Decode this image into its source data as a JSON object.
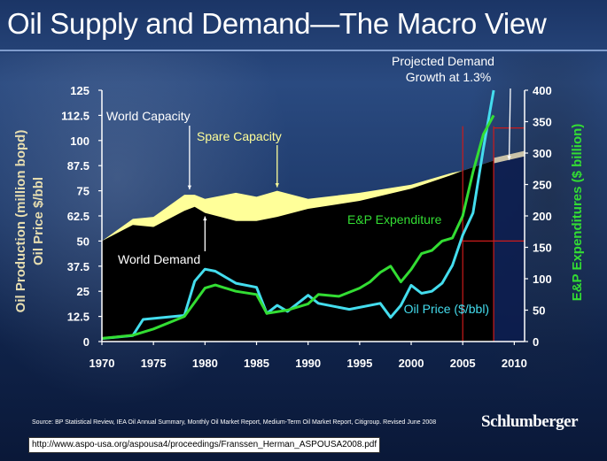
{
  "title": "Oil Supply and Demand—The Macro View",
  "source": "Source: BP Statistical Review, IEA Oil Annual Summary, Monthly Oil Market Report, Medium-Term Oil Market Report, Citigroup. Revised June 2008",
  "brand": "Schlumberger",
  "url": "http://www.aspo-usa.org/aspousa4/proceedings/Franssen_Herman_ASPOUSA2008.pdf",
  "colors": {
    "capacity": "#ffff99",
    "demand": "#000000",
    "oil_price": "#44ddee",
    "ep_expenditure": "#33dd33",
    "axis_text": "#ffffff",
    "left_axis_title": "#e6ddb0",
    "right_axis_title": "#33dd33",
    "guide_lines": "#cc1b1b",
    "demand_projection_line": "#c9c2a8"
  },
  "chart_data": {
    "type": "area",
    "left_axis_titles": [
      "Oil Production (million bopd)",
      "Oil Price $/bbl"
    ],
    "right_axis_title": "E&P Expenditures ($ billion)",
    "xlim": [
      1970,
      2011
    ],
    "ylim": [
      0,
      125
    ],
    "y2lim": [
      0,
      400
    ],
    "x_ticks": [
      1970,
      1975,
      1980,
      1985,
      1990,
      1995,
      2000,
      2005,
      2010
    ],
    "y_ticks": [
      0,
      12.5,
      25,
      37.5,
      50,
      62.5,
      75,
      87.5,
      100,
      112.5,
      125
    ],
    "y2_ticks": [
      0,
      50,
      100,
      150,
      200,
      250,
      300,
      350,
      400
    ],
    "series": [
      {
        "name": "World Capacity",
        "axis": "left",
        "x": [
          1970,
          1973,
          1975,
          1978,
          1979,
          1980,
          1983,
          1985,
          1987,
          1990,
          1995,
          2000,
          2004,
          2005,
          2008
        ],
        "values": [
          50,
          61,
          62,
          73,
          73,
          71,
          74,
          72,
          75,
          71,
          74,
          78,
          84,
          85,
          90
        ]
      },
      {
        "name": "World Demand",
        "axis": "left",
        "x": [
          1970,
          1973,
          1975,
          1978,
          1979,
          1980,
          1983,
          1985,
          1987,
          1990,
          1995,
          2000,
          2004,
          2005,
          2008
        ],
        "values": [
          50,
          58,
          57,
          65,
          67,
          64,
          60,
          60,
          62,
          66,
          70,
          76,
          83,
          85,
          90
        ]
      },
      {
        "name": "Projected Demand Growth at 1.3%",
        "axis": "left",
        "x": [
          2008,
          2011
        ],
        "values": [
          90,
          93.5
        ]
      },
      {
        "name": "Oil Price ($/bbl)",
        "axis": "left",
        "x": [
          1970,
          1973,
          1974,
          1978,
          1979,
          1980,
          1981,
          1983,
          1985,
          1986,
          1987,
          1988,
          1990,
          1991,
          1993,
          1994,
          1997,
          1998,
          1999,
          2000,
          2001,
          2002,
          2003,
          2004,
          2005,
          2006,
          2007,
          2008
        ],
        "values": [
          1.5,
          3,
          11,
          13,
          30,
          36,
          35,
          29,
          27,
          14,
          18,
          15,
          23,
          19,
          17,
          16,
          19,
          12,
          18,
          28,
          24,
          25,
          29,
          38,
          53,
          64,
          96,
          125
        ]
      },
      {
        "name": "E&P Expenditure",
        "axis": "right",
        "x": [
          1970,
          1973,
          1975,
          1978,
          1980,
          1981,
          1983,
          1985,
          1986,
          1988,
          1990,
          1991,
          1993,
          1995,
          1996,
          1997,
          1998,
          1999,
          2000,
          2001,
          2002,
          2003,
          2004,
          2005,
          2006,
          2007,
          2008
        ],
        "values": [
          5,
          10,
          20,
          40,
          85,
          90,
          80,
          75,
          45,
          50,
          60,
          75,
          72,
          85,
          95,
          110,
          120,
          95,
          115,
          140,
          145,
          160,
          165,
          200,
          270,
          330,
          360
        ]
      }
    ],
    "annotations": [
      {
        "text": "World Capacity",
        "x": 1978.5,
        "y": 73
      },
      {
        "text": "Spare Capacity",
        "x": 1987,
        "y": 75
      },
      {
        "text": "World Demand",
        "x": 1980,
        "y": 64
      },
      {
        "text": "E&P Expenditure",
        "x": 2000,
        "y": 150
      },
      {
        "text": "Oil Price ($/bbl)",
        "x": 2008,
        "y": 50
      },
      {
        "text_lines": [
          "Projected Demand",
          "Growth at 1.3%"
        ],
        "x": 2009.5,
        "y": 100
      }
    ],
    "guide_lines": {
      "vertical_years": [
        2005,
        2008
      ],
      "horizontal_right_values": [
        160,
        340
      ]
    },
    "legend": "none",
    "grid": false
  }
}
